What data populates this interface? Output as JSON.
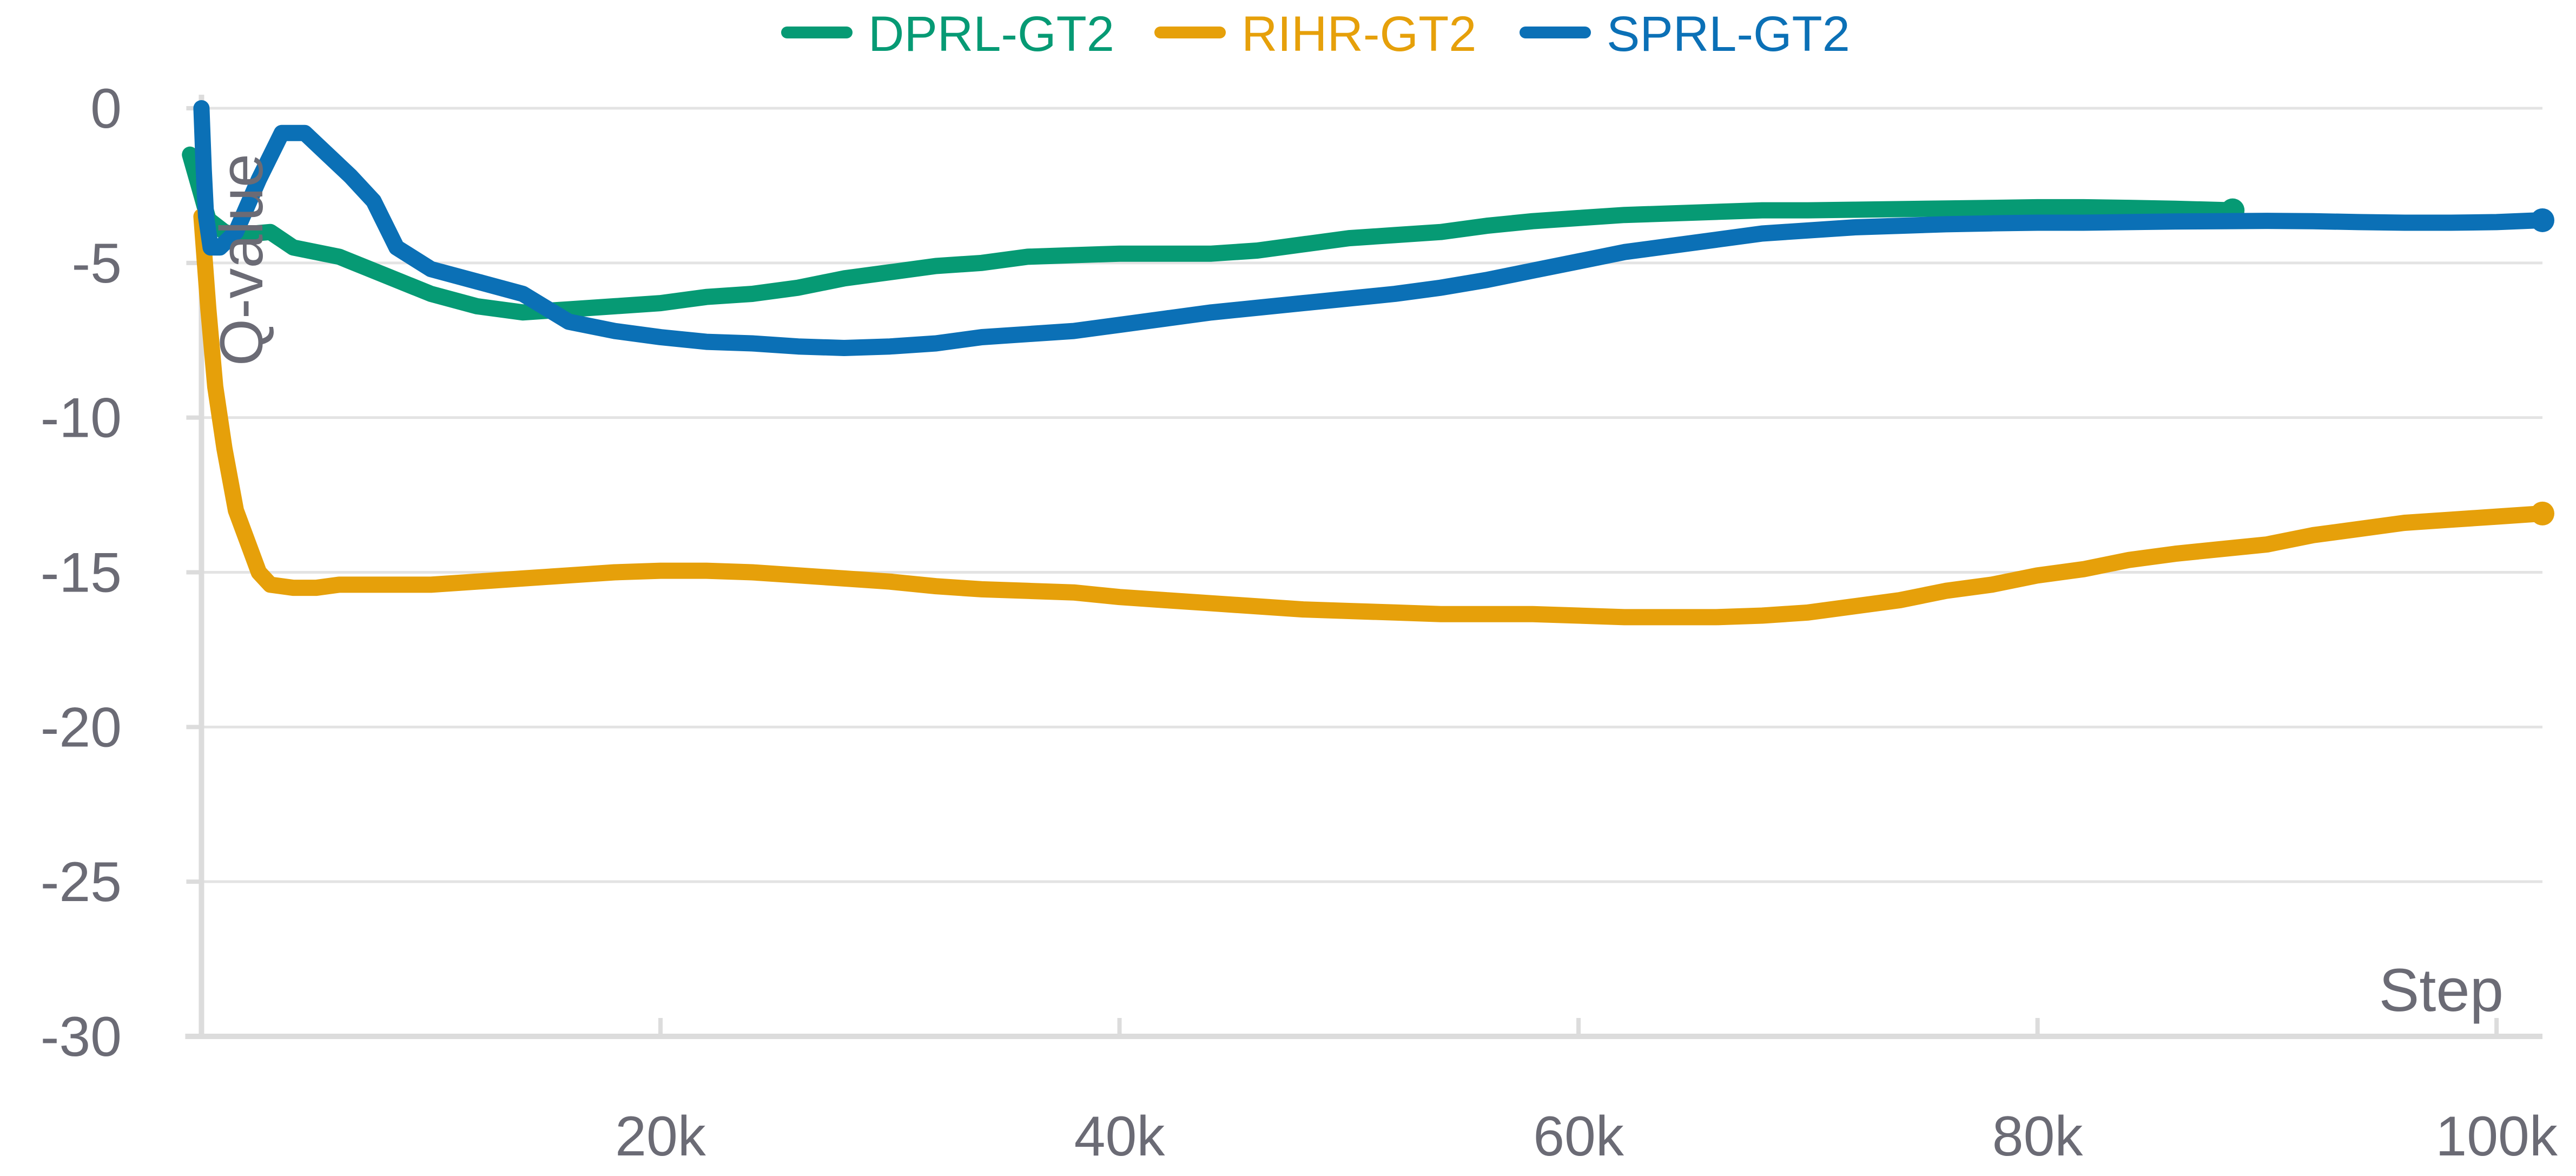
{
  "chart_data": {
    "type": "line",
    "title": "",
    "xlabel": "Step",
    "ylabel": "Q-value",
    "xlim": [
      -1000,
      102000
    ],
    "ylim": [
      -30,
      0
    ],
    "x_ticks": [
      20000,
      40000,
      60000,
      80000,
      100000
    ],
    "x_tick_labels": [
      "20k",
      "40k",
      "60k",
      "80k",
      "100k"
    ],
    "y_ticks": [
      0,
      -5,
      -10,
      -15,
      -20,
      -25,
      -30
    ],
    "y_tick_labels": [
      "0",
      "-5",
      "-10",
      "-15",
      "-20",
      "-25",
      "-30"
    ],
    "grid": true,
    "legend_position": "top-center",
    "series": [
      {
        "name": "DPRL-GT2",
        "color": "#069a74",
        "x": [
          -500,
          0,
          300,
          1000,
          1500,
          3000,
          4000,
          6000,
          8000,
          10000,
          12000,
          14000,
          16000,
          18000,
          20000,
          22000,
          24000,
          26000,
          28000,
          30000,
          32000,
          34000,
          36000,
          38000,
          40000,
          42000,
          44000,
          46000,
          48000,
          50000,
          52000,
          54000,
          56000,
          58000,
          60000,
          62000,
          64000,
          66000,
          68000,
          70000,
          72000,
          74000,
          76000,
          78000,
          80000,
          82000,
          84000,
          86000,
          88500
        ],
        "values": [
          -1.5,
          -2.8,
          -3.6,
          -4.0,
          -4.1,
          -4.0,
          -4.5,
          -4.8,
          -5.4,
          -6.0,
          -6.4,
          -6.6,
          -6.5,
          -6.4,
          -6.3,
          -6.1,
          -6.0,
          -5.8,
          -5.5,
          -5.3,
          -5.1,
          -5.0,
          -4.8,
          -4.75,
          -4.7,
          -4.7,
          -4.7,
          -4.6,
          -4.4,
          -4.2,
          -4.1,
          -4.0,
          -3.8,
          -3.65,
          -3.55,
          -3.45,
          -3.4,
          -3.35,
          -3.3,
          -3.3,
          -3.28,
          -3.26,
          -3.24,
          -3.22,
          -3.2,
          -3.2,
          -3.22,
          -3.25,
          -3.3
        ]
      },
      {
        "name": "RIHR-GT2",
        "color": "#e6a00a",
        "x": [
          0,
          300,
          600,
          1000,
          1500,
          2000,
          2500,
          3000,
          4000,
          5000,
          6000,
          8000,
          10000,
          12000,
          14000,
          16000,
          18000,
          20000,
          22000,
          24000,
          26000,
          28000,
          30000,
          32000,
          34000,
          36000,
          38000,
          40000,
          42000,
          44000,
          46000,
          48000,
          50000,
          52000,
          54000,
          56000,
          58000,
          60000,
          62000,
          64000,
          66000,
          68000,
          70000,
          72000,
          74000,
          76000,
          78000,
          80000,
          82000,
          84000,
          86000,
          88000,
          90000,
          92000,
          94000,
          96000,
          98000,
          100000,
          102000
        ],
        "values": [
          -3.5,
          -6.5,
          -9.0,
          -11.0,
          -13.0,
          -14.0,
          -15.0,
          -15.4,
          -15.5,
          -15.5,
          -15.4,
          -15.4,
          -15.4,
          -15.3,
          -15.2,
          -15.1,
          -15.0,
          -14.95,
          -14.95,
          -15.0,
          -15.1,
          -15.2,
          -15.3,
          -15.45,
          -15.55,
          -15.6,
          -15.65,
          -15.8,
          -15.9,
          -16.0,
          -16.1,
          -16.2,
          -16.25,
          -16.3,
          -16.35,
          -16.35,
          -16.35,
          -16.4,
          -16.45,
          -16.45,
          -16.45,
          -16.4,
          -16.3,
          -16.1,
          -15.9,
          -15.6,
          -15.4,
          -15.1,
          -14.9,
          -14.6,
          -14.4,
          -14.25,
          -14.1,
          -13.8,
          -13.6,
          -13.4,
          -13.3,
          -13.2,
          -13.1
        ]
      },
      {
        "name": "SPRL-GT2",
        "color": "#0b70b6",
        "x": [
          0,
          100,
          200,
          400,
          800,
          1500,
          2500,
          3500,
          4500,
          5500,
          6500,
          7500,
          8500,
          10000,
          12000,
          14000,
          16000,
          18000,
          20000,
          22000,
          24000,
          26000,
          28000,
          30000,
          32000,
          34000,
          36000,
          38000,
          40000,
          42000,
          44000,
          46000,
          48000,
          50000,
          52000,
          54000,
          56000,
          58000,
          60000,
          62000,
          64000,
          66000,
          68000,
          70000,
          72000,
          74000,
          76000,
          78000,
          80000,
          82000,
          84000,
          86000,
          88000,
          90000,
          92000,
          94000,
          96000,
          98000,
          100000,
          102000
        ],
        "values": [
          0.0,
          -2.0,
          -3.5,
          -4.5,
          -4.5,
          -4.0,
          -2.3,
          -0.8,
          -0.8,
          -1.5,
          -2.2,
          -3.0,
          -4.5,
          -5.2,
          -5.6,
          -6.0,
          -6.9,
          -7.2,
          -7.4,
          -7.55,
          -7.6,
          -7.7,
          -7.75,
          -7.7,
          -7.6,
          -7.4,
          -7.3,
          -7.2,
          -7.0,
          -6.8,
          -6.6,
          -6.45,
          -6.3,
          -6.15,
          -6.0,
          -5.8,
          -5.55,
          -5.25,
          -4.95,
          -4.65,
          -4.45,
          -4.25,
          -4.05,
          -3.95,
          -3.85,
          -3.8,
          -3.75,
          -3.72,
          -3.7,
          -3.7,
          -3.68,
          -3.66,
          -3.65,
          -3.64,
          -3.65,
          -3.68,
          -3.7,
          -3.7,
          -3.68,
          -3.62
        ]
      }
    ]
  }
}
